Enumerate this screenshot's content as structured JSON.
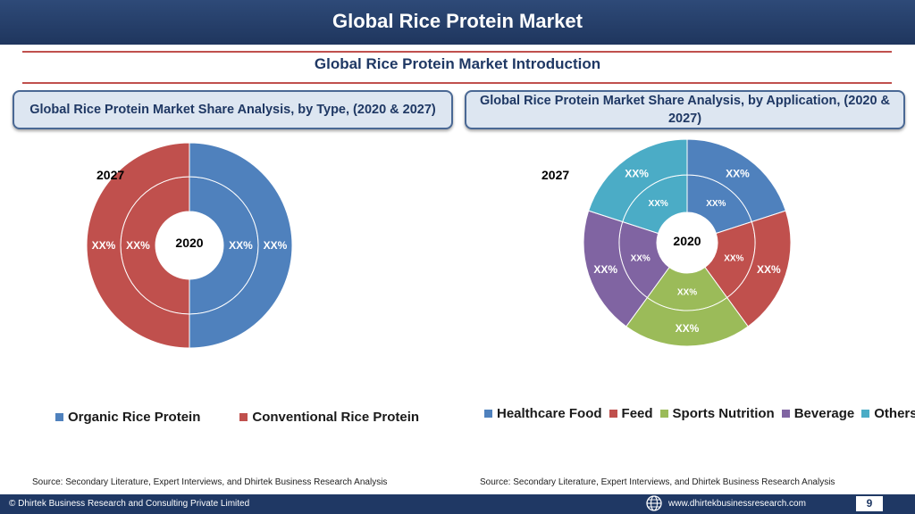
{
  "header": {
    "title": "Global Rice Protein Market"
  },
  "section": {
    "title": "Global Rice Protein Market  Introduction"
  },
  "colors": {
    "blue": "#4f81bd",
    "red": "#c0504d",
    "green": "#9bbb59",
    "purple": "#8064a2",
    "teal": "#4bacc6",
    "navy": "#1f3864"
  },
  "left_panel": {
    "title": "Global Rice Protein Market  Share Analysis, by Type, (2020 & 2027)",
    "outer_year": "2027",
    "inner_year": "2020",
    "source": "Source: Secondary Literature, Expert Interviews, and Dhirtek Business Research Analysis"
  },
  "right_panel": {
    "title": "Global Rice Protein Market  Share Analysis, by Application, (2020 & 2027)",
    "outer_year": "2027",
    "inner_year": "2020",
    "source": "Source: Secondary Literature, Expert Interviews, and Dhirtek Business Research Analysis"
  },
  "chart_data": [
    {
      "type": "doughnut",
      "categories": [
        "Organic Rice Protein",
        "Conventional Rice Protein"
      ],
      "series": [
        {
          "values": [
            50,
            50
          ],
          "labels": [
            "XX%",
            "XX%"
          ]
        },
        {
          "values": [
            50,
            50
          ],
          "labels": [
            "XX%",
            "XX%"
          ]
        }
      ],
      "colors": [
        "#4f81bd",
        "#c0504d"
      ],
      "legend_position": "bottom"
    },
    {
      "type": "doughnut",
      "categories": [
        "Healthcare Food",
        "Feed",
        "Sports Nutrition",
        "Beverage",
        "Others"
      ],
      "series": [
        {
          "values": [
            20,
            20,
            20,
            20,
            20
          ],
          "labels": [
            "XX%",
            "XX%",
            "XX%",
            "XX%",
            "XX%"
          ]
        },
        {
          "values": [
            20,
            20,
            20,
            20,
            20
          ],
          "labels": [
            "XX%",
            "XX%",
            "XX%",
            "XX%",
            "XX%"
          ]
        }
      ],
      "colors": [
        "#4f81bd",
        "#c0504d",
        "#9bbb59",
        "#8064a2",
        "#4bacc6"
      ],
      "legend_position": "bottom"
    }
  ],
  "footer": {
    "copyright": "© Dhirtek Business Research and Consulting Private Limited",
    "url": "www.dhirtekbusinessresearch.com",
    "page": "9"
  }
}
